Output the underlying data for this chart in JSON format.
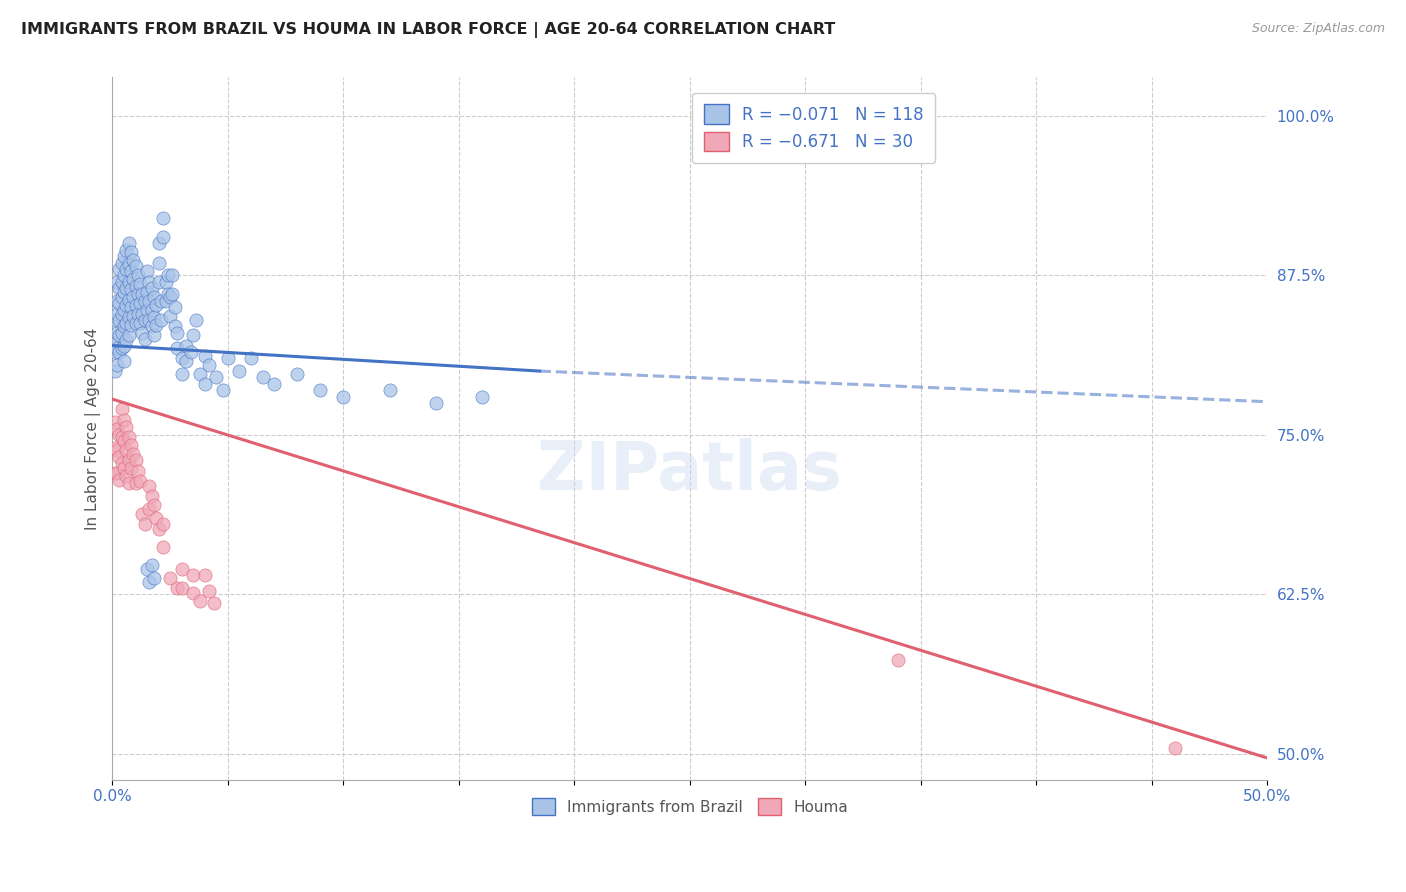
{
  "title": "IMMIGRANTS FROM BRAZIL VS HOUMA IN LABOR FORCE | AGE 20-64 CORRELATION CHART",
  "source": "Source: ZipAtlas.com",
  "ylabel": "In Labor Force | Age 20-64",
  "ytick_labels": [
    "100.0%",
    "87.5%",
    "75.0%",
    "62.5%",
    "50.0%"
  ],
  "ytick_values": [
    1.0,
    0.875,
    0.75,
    0.625,
    0.5
  ],
  "xlim": [
    0.0,
    0.5
  ],
  "ylim": [
    0.48,
    1.03
  ],
  "brazil_color": "#aac4e8",
  "houma_color": "#f0a8b8",
  "brazil_line_color": "#4472c4",
  "houma_line_color": "#e06070",
  "background_color": "#ffffff",
  "axis_label_color": "#4472c4",
  "brazil_scatter": [
    [
      0.001,
      0.84
    ],
    [
      0.001,
      0.825
    ],
    [
      0.001,
      0.815
    ],
    [
      0.001,
      0.8
    ],
    [
      0.002,
      0.87
    ],
    [
      0.002,
      0.855
    ],
    [
      0.002,
      0.845
    ],
    [
      0.002,
      0.83
    ],
    [
      0.002,
      0.818
    ],
    [
      0.002,
      0.805
    ],
    [
      0.003,
      0.88
    ],
    [
      0.003,
      0.865
    ],
    [
      0.003,
      0.853
    ],
    [
      0.003,
      0.84
    ],
    [
      0.003,
      0.828
    ],
    [
      0.003,
      0.815
    ],
    [
      0.004,
      0.885
    ],
    [
      0.004,
      0.87
    ],
    [
      0.004,
      0.858
    ],
    [
      0.004,
      0.845
    ],
    [
      0.004,
      0.83
    ],
    [
      0.004,
      0.818
    ],
    [
      0.005,
      0.89
    ],
    [
      0.005,
      0.875
    ],
    [
      0.005,
      0.862
    ],
    [
      0.005,
      0.848
    ],
    [
      0.005,
      0.835
    ],
    [
      0.005,
      0.82
    ],
    [
      0.005,
      0.808
    ],
    [
      0.006,
      0.895
    ],
    [
      0.006,
      0.88
    ],
    [
      0.006,
      0.865
    ],
    [
      0.006,
      0.852
    ],
    [
      0.006,
      0.838
    ],
    [
      0.006,
      0.824
    ],
    [
      0.007,
      0.9
    ],
    [
      0.007,
      0.884
    ],
    [
      0.007,
      0.87
    ],
    [
      0.007,
      0.856
    ],
    [
      0.007,
      0.842
    ],
    [
      0.007,
      0.828
    ],
    [
      0.008,
      0.893
    ],
    [
      0.008,
      0.878
    ],
    [
      0.008,
      0.864
    ],
    [
      0.008,
      0.85
    ],
    [
      0.008,
      0.836
    ],
    [
      0.009,
      0.887
    ],
    [
      0.009,
      0.872
    ],
    [
      0.009,
      0.858
    ],
    [
      0.009,
      0.843
    ],
    [
      0.01,
      0.882
    ],
    [
      0.01,
      0.867
    ],
    [
      0.01,
      0.852
    ],
    [
      0.01,
      0.838
    ],
    [
      0.011,
      0.875
    ],
    [
      0.011,
      0.86
    ],
    [
      0.011,
      0.845
    ],
    [
      0.012,
      0.868
    ],
    [
      0.012,
      0.853
    ],
    [
      0.012,
      0.838
    ],
    [
      0.013,
      0.86
    ],
    [
      0.013,
      0.845
    ],
    [
      0.013,
      0.83
    ],
    [
      0.014,
      0.855
    ],
    [
      0.014,
      0.84
    ],
    [
      0.014,
      0.825
    ],
    [
      0.015,
      0.878
    ],
    [
      0.015,
      0.862
    ],
    [
      0.015,
      0.848
    ],
    [
      0.016,
      0.87
    ],
    [
      0.016,
      0.855
    ],
    [
      0.016,
      0.84
    ],
    [
      0.017,
      0.865
    ],
    [
      0.017,
      0.848
    ],
    [
      0.017,
      0.835
    ],
    [
      0.018,
      0.858
    ],
    [
      0.018,
      0.842
    ],
    [
      0.018,
      0.828
    ],
    [
      0.019,
      0.852
    ],
    [
      0.019,
      0.836
    ],
    [
      0.02,
      0.9
    ],
    [
      0.02,
      0.885
    ],
    [
      0.02,
      0.87
    ],
    [
      0.021,
      0.855
    ],
    [
      0.021,
      0.84
    ],
    [
      0.022,
      0.92
    ],
    [
      0.022,
      0.905
    ],
    [
      0.023,
      0.87
    ],
    [
      0.023,
      0.855
    ],
    [
      0.024,
      0.875
    ],
    [
      0.024,
      0.86
    ],
    [
      0.025,
      0.858
    ],
    [
      0.025,
      0.843
    ],
    [
      0.026,
      0.875
    ],
    [
      0.026,
      0.86
    ],
    [
      0.027,
      0.85
    ],
    [
      0.027,
      0.835
    ],
    [
      0.028,
      0.83
    ],
    [
      0.028,
      0.818
    ],
    [
      0.03,
      0.81
    ],
    [
      0.03,
      0.798
    ],
    [
      0.032,
      0.82
    ],
    [
      0.032,
      0.808
    ],
    [
      0.034,
      0.815
    ],
    [
      0.035,
      0.828
    ],
    [
      0.036,
      0.84
    ],
    [
      0.038,
      0.798
    ],
    [
      0.04,
      0.812
    ],
    [
      0.04,
      0.79
    ],
    [
      0.042,
      0.805
    ],
    [
      0.045,
      0.795
    ],
    [
      0.048,
      0.785
    ],
    [
      0.05,
      0.81
    ],
    [
      0.055,
      0.8
    ],
    [
      0.06,
      0.81
    ],
    [
      0.065,
      0.795
    ],
    [
      0.07,
      0.79
    ],
    [
      0.08,
      0.798
    ],
    [
      0.09,
      0.785
    ],
    [
      0.1,
      0.78
    ],
    [
      0.12,
      0.785
    ],
    [
      0.14,
      0.775
    ],
    [
      0.16,
      0.78
    ],
    [
      0.015,
      0.645
    ],
    [
      0.016,
      0.635
    ],
    [
      0.017,
      0.648
    ],
    [
      0.018,
      0.638
    ]
  ],
  "houma_scatter": [
    [
      0.001,
      0.76
    ],
    [
      0.001,
      0.74
    ],
    [
      0.001,
      0.72
    ],
    [
      0.002,
      0.755
    ],
    [
      0.002,
      0.738
    ],
    [
      0.002,
      0.72
    ],
    [
      0.003,
      0.75
    ],
    [
      0.003,
      0.733
    ],
    [
      0.003,
      0.715
    ],
    [
      0.004,
      0.77
    ],
    [
      0.004,
      0.748
    ],
    [
      0.004,
      0.728
    ],
    [
      0.005,
      0.762
    ],
    [
      0.005,
      0.745
    ],
    [
      0.005,
      0.724
    ],
    [
      0.006,
      0.756
    ],
    [
      0.006,
      0.738
    ],
    [
      0.006,
      0.718
    ],
    [
      0.007,
      0.748
    ],
    [
      0.007,
      0.73
    ],
    [
      0.007,
      0.712
    ],
    [
      0.008,
      0.742
    ],
    [
      0.008,
      0.724
    ],
    [
      0.009,
      0.735
    ],
    [
      0.01,
      0.73
    ],
    [
      0.01,
      0.712
    ],
    [
      0.011,
      0.722
    ],
    [
      0.012,
      0.714
    ],
    [
      0.013,
      0.688
    ],
    [
      0.014,
      0.68
    ],
    [
      0.016,
      0.71
    ],
    [
      0.016,
      0.692
    ],
    [
      0.017,
      0.702
    ],
    [
      0.018,
      0.695
    ],
    [
      0.019,
      0.685
    ],
    [
      0.02,
      0.676
    ],
    [
      0.022,
      0.68
    ],
    [
      0.022,
      0.662
    ],
    [
      0.025,
      0.638
    ],
    [
      0.028,
      0.63
    ],
    [
      0.03,
      0.645
    ],
    [
      0.03,
      0.63
    ],
    [
      0.035,
      0.64
    ],
    [
      0.035,
      0.626
    ],
    [
      0.038,
      0.62
    ],
    [
      0.04,
      0.64
    ],
    [
      0.042,
      0.628
    ],
    [
      0.044,
      0.618
    ],
    [
      0.34,
      0.574
    ],
    [
      0.46,
      0.505
    ]
  ],
  "brazil_trendline_solid": [
    [
      0.0,
      0.82
    ],
    [
      0.185,
      0.8
    ]
  ],
  "brazil_trendline_dashed": [
    [
      0.185,
      0.8
    ],
    [
      0.5,
      0.776
    ]
  ],
  "houma_trendline": [
    [
      0.0,
      0.778
    ],
    [
      0.5,
      0.497
    ]
  ]
}
